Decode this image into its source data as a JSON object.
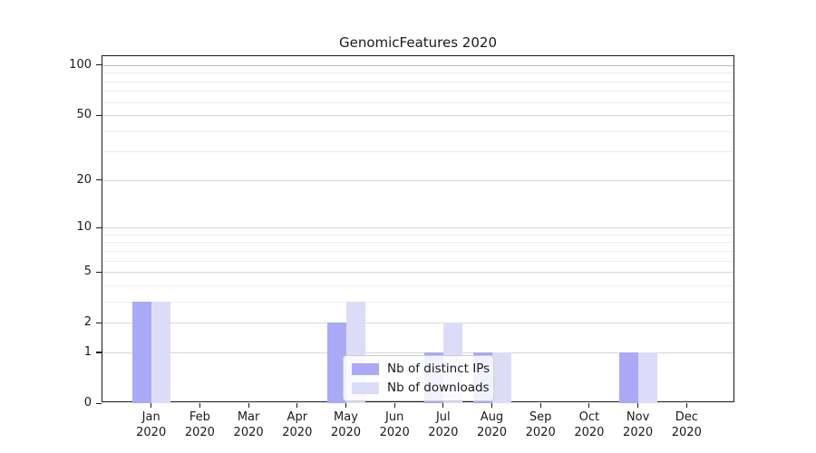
{
  "chart_data": {
    "type": "bar",
    "title": "GenomicFeatures 2020",
    "categories": [
      "Jan\n2020",
      "Feb\n2020",
      "Mar\n2020",
      "Apr\n2020",
      "May\n2020",
      "Jun\n2020",
      "Jul\n2020",
      "Aug\n2020",
      "Sep\n2020",
      "Oct\n2020",
      "Nov\n2020",
      "Dec\n2020"
    ],
    "series": [
      {
        "name": "Nb of distinct IPs",
        "color": "#a9a9f6",
        "values": [
          3,
          0,
          0,
          0,
          2,
          0,
          1,
          1,
          0,
          0,
          1,
          0
        ]
      },
      {
        "name": "Nb of downloads",
        "color": "#dcdcf8",
        "values": [
          3,
          0,
          0,
          0,
          3,
          0,
          2,
          1,
          0,
          0,
          1,
          0
        ]
      }
    ],
    "yticks": [
      0,
      1,
      2,
      5,
      10,
      20,
      50,
      100
    ],
    "minor_yticks": [
      3,
      4,
      6,
      7,
      8,
      9,
      30,
      40,
      60,
      70,
      80,
      90
    ],
    "scale": "log1p",
    "ylim": [
      0,
      113
    ],
    "xlabel": "",
    "ylabel": "",
    "grid": true,
    "legend_position": "lower center",
    "colors": {
      "major_grid": "#d6d6d6",
      "minor_grid": "#ececec",
      "top_grid": "#bdbdbd",
      "axis": "#1a1a1a"
    }
  }
}
